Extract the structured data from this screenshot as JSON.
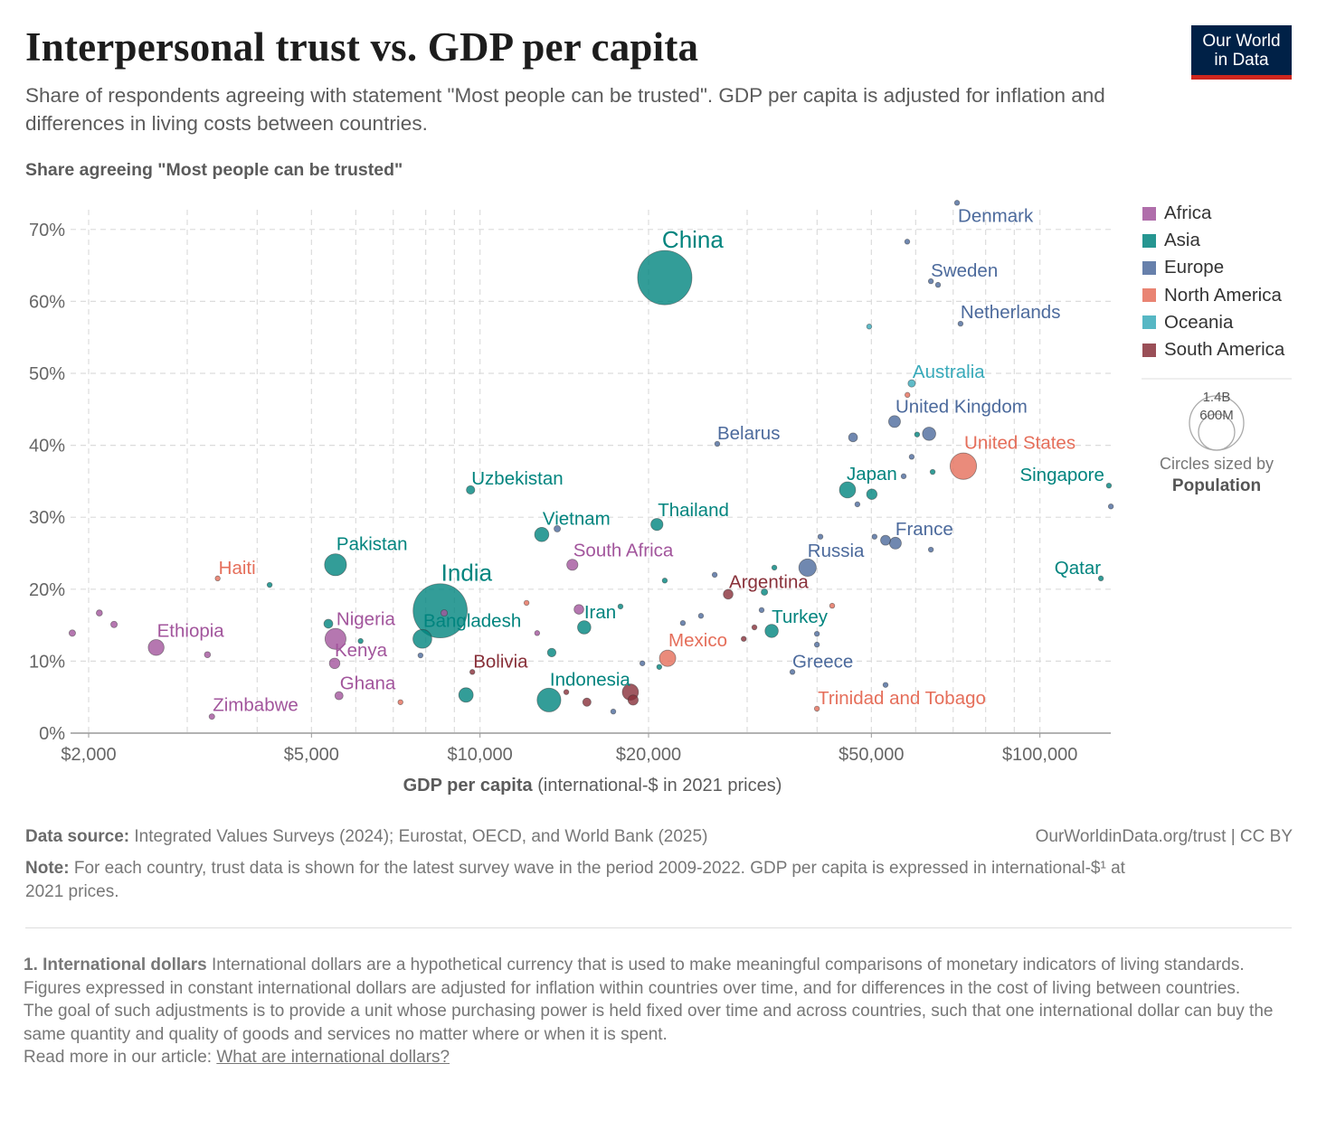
{
  "header": {
    "title": "Interpersonal trust vs. GDP per capita",
    "subtitle": "Share of respondents agreeing with statement \"Most people can be trusted\". GDP per capita is adjusted for inflation and differences in living costs between countries.",
    "logo_line1": "Our World",
    "logo_line2": "in Data"
  },
  "chart_data": {
    "type": "scatter",
    "title": "Interpersonal trust vs. GDP per capita",
    "ylabel": "Share agreeing \"Most people can be trusted\"",
    "xlabel_bold": "GDP per capita",
    "xlabel_rest": " (international-$ in 2021 prices)",
    "x_scale": "log",
    "xlim": [
      1860,
      134000
    ],
    "ylim": [
      0,
      73
    ],
    "x_ticks": [
      {
        "v": 2000,
        "label": "$2,000"
      },
      {
        "v": 5000,
        "label": "$5,000"
      },
      {
        "v": 10000,
        "label": "$10,000"
      },
      {
        "v": 20000,
        "label": "$20,000"
      },
      {
        "v": 50000,
        "label": "$50,000"
      },
      {
        "v": 100000,
        "label": "$100,000"
      }
    ],
    "y_ticks": [
      {
        "v": 0,
        "label": "0%"
      },
      {
        "v": 10,
        "label": "10%"
      },
      {
        "v": 20,
        "label": "20%"
      },
      {
        "v": 30,
        "label": "30%"
      },
      {
        "v": 40,
        "label": "40%"
      },
      {
        "v": 50,
        "label": "50%"
      },
      {
        "v": 60,
        "label": "60%"
      },
      {
        "v": 70,
        "label": "70%"
      }
    ],
    "grid": true,
    "legend_placement": "right",
    "regions": [
      {
        "name": "Africa",
        "color": "#a2559c"
      },
      {
        "name": "Asia",
        "color": "#00847e"
      },
      {
        "name": "Europe",
        "color": "#4c6a9c"
      },
      {
        "name": "North America",
        "color": "#e56e5a"
      },
      {
        "name": "Oceania",
        "color": "#38aaba"
      },
      {
        "name": "South America",
        "color": "#883039"
      }
    ],
    "size_legend": {
      "values": [
        "1.4B",
        "600M"
      ],
      "caption": "Circles sized by",
      "variable": "Population"
    },
    "points": [
      {
        "region": "Africa",
        "gdp": 1870,
        "trust": 13.9,
        "pop": 20
      },
      {
        "region": "Africa",
        "gdp": 2090,
        "trust": 16.7,
        "pop": 18
      },
      {
        "region": "Africa",
        "gdp": 2220,
        "trust": 15.1,
        "pop": 20
      },
      {
        "label": "Ethiopia",
        "region": "Africa",
        "gdp": 2640,
        "trust": 11.9,
        "pop": 120
      },
      {
        "region": "Africa",
        "gdp": 3260,
        "trust": 10.9,
        "pop": 18
      },
      {
        "label": "Zimbabwe",
        "region": "Africa",
        "gdp": 3320,
        "trust": 2.3,
        "pop": 15
      },
      {
        "label": "Nigeria",
        "region": "Africa",
        "gdp": 5520,
        "trust": 13.1,
        "pop": 210
      },
      {
        "label": "Kenya",
        "region": "Africa",
        "gdp": 5500,
        "trust": 9.7,
        "pop": 53
      },
      {
        "label": "Ghana",
        "region": "Africa",
        "gdp": 5600,
        "trust": 5.2,
        "pop": 32
      },
      {
        "region": "Africa",
        "gdp": 8630,
        "trust": 16.7,
        "pop": 20
      },
      {
        "region": "Africa",
        "gdp": 12650,
        "trust": 13.9,
        "pop": 10
      },
      {
        "label": "South Africa",
        "region": "Africa",
        "gdp": 14620,
        "trust": 23.4,
        "pop": 59
      },
      {
        "region": "Africa",
        "gdp": 15020,
        "trust": 17.2,
        "pop": 45
      },
      {
        "label": "China",
        "region": "Asia",
        "gdp": 21380,
        "trust": 63.3,
        "pop": 1410
      },
      {
        "label": "India",
        "region": "Asia",
        "gdp": 8490,
        "trust": 17.0,
        "pop": 1400
      },
      {
        "label": "Pakistan",
        "region": "Asia",
        "gdp": 5520,
        "trust": 23.4,
        "pop": 230
      },
      {
        "region": "Asia",
        "gdp": 4210,
        "trust": 20.6,
        "pop": 10
      },
      {
        "region": "Asia",
        "gdp": 5360,
        "trust": 15.2,
        "pop": 38
      },
      {
        "region": "Asia",
        "gdp": 6120,
        "trust": 12.8,
        "pop": 10
      },
      {
        "label": "Bangladesh",
        "region": "Asia",
        "gdp": 7890,
        "trust": 13.1,
        "pop": 170
      },
      {
        "label": "Uzbekistan",
        "region": "Asia",
        "gdp": 9620,
        "trust": 33.8,
        "pop": 34
      },
      {
        "region": "Asia",
        "gdp": 9440,
        "trust": 5.3,
        "pop": 100
      },
      {
        "label": "Vietnam",
        "region": "Asia",
        "gdp": 12890,
        "trust": 27.6,
        "pop": 97
      },
      {
        "region": "Asia",
        "gdp": 13430,
        "trust": 11.2,
        "pop": 35
      },
      {
        "label": "Indonesia",
        "region": "Asia",
        "gdp": 13280,
        "trust": 4.6,
        "pop": 270
      },
      {
        "label": "Iran",
        "region": "Asia",
        "gdp": 15350,
        "trust": 14.7,
        "pop": 85
      },
      {
        "region": "Asia",
        "gdp": 17820,
        "trust": 17.6,
        "pop": 10
      },
      {
        "label": "Thailand",
        "region": "Asia",
        "gdp": 20700,
        "trust": 29.0,
        "pop": 70
      },
      {
        "region": "Asia",
        "gdp": 21380,
        "trust": 21.2,
        "pop": 10
      },
      {
        "region": "Asia",
        "gdp": 20900,
        "trust": 9.2,
        "pop": 10
      },
      {
        "region": "Asia",
        "gdp": 33550,
        "trust": 23.0,
        "pop": 12
      },
      {
        "region": "Asia",
        "gdp": 32210,
        "trust": 19.6,
        "pop": 20
      },
      {
        "label": "Turkey",
        "region": "Asia",
        "gdp": 33180,
        "trust": 14.2,
        "pop": 84
      },
      {
        "label": "Japan",
        "region": "Asia",
        "gdp": 45330,
        "trust": 33.8,
        "pop": 125
      },
      {
        "region": "Asia",
        "gdp": 50100,
        "trust": 33.2,
        "pop": 52
      },
      {
        "region": "Asia",
        "gdp": 60350,
        "trust": 41.5,
        "pop": 8
      },
      {
        "region": "Asia",
        "gdp": 64330,
        "trust": 36.3,
        "pop": 8
      },
      {
        "label": "Singapore",
        "region": "Asia",
        "gdp": 132800,
        "trust": 34.4,
        "pop": 6
      },
      {
        "label": "Qatar",
        "region": "Asia",
        "gdp": 128500,
        "trust": 21.5,
        "pop": 3
      },
      {
        "region": "Europe",
        "gdp": 7830,
        "trust": 10.8,
        "pop": 8
      },
      {
        "region": "Europe",
        "gdp": 13740,
        "trust": 28.4,
        "pop": 20
      },
      {
        "label": "Belarus",
        "region": "Europe",
        "gdp": 26530,
        "trust": 40.2,
        "pop": 9
      },
      {
        "region": "Europe",
        "gdp": 26250,
        "trust": 22.0,
        "pop": 10
      },
      {
        "region": "Europe",
        "gdp": 24810,
        "trust": 16.3,
        "pop": 10
      },
      {
        "region": "Europe",
        "gdp": 23030,
        "trust": 15.3,
        "pop": 8
      },
      {
        "region": "Europe",
        "gdp": 19500,
        "trust": 9.7,
        "pop": 7
      },
      {
        "region": "Europe",
        "gdp": 17300,
        "trust": 3.0,
        "pop": 7
      },
      {
        "region": "Europe",
        "gdp": 31840,
        "trust": 17.1,
        "pop": 10
      },
      {
        "label": "Russia",
        "region": "Europe",
        "gdp": 38460,
        "trust": 23.0,
        "pop": 145
      },
      {
        "region": "Europe",
        "gdp": 40550,
        "trust": 27.3,
        "pop": 10
      },
      {
        "region": "Europe",
        "gdp": 39970,
        "trust": 13.8,
        "pop": 10
      },
      {
        "region": "Europe",
        "gdp": 39970,
        "trust": 12.3,
        "pop": 10
      },
      {
        "label": "Greece",
        "region": "Europe",
        "gdp": 36140,
        "trust": 8.5,
        "pop": 10
      },
      {
        "region": "Europe",
        "gdp": 53000,
        "trust": 6.7,
        "pop": 6
      },
      {
        "label": "France",
        "region": "Europe",
        "gdp": 55200,
        "trust": 26.4,
        "pop": 67
      },
      {
        "region": "Europe",
        "gdp": 53000,
        "trust": 26.8,
        "pop": 47
      },
      {
        "region": "Europe",
        "gdp": 50650,
        "trust": 27.3,
        "pop": 6
      },
      {
        "region": "Europe",
        "gdp": 63870,
        "trust": 25.5,
        "pop": 9
      },
      {
        "label": "United Kingdom",
        "region": "Europe",
        "gdp": 55000,
        "trust": 43.3,
        "pop": 67
      },
      {
        "region": "Europe",
        "gdp": 63400,
        "trust": 41.6,
        "pop": 84
      },
      {
        "region": "Europe",
        "gdp": 46370,
        "trust": 41.1,
        "pop": 38
      },
      {
        "region": "Europe",
        "gdp": 57100,
        "trust": 35.7,
        "pop": 8
      },
      {
        "region": "Europe",
        "gdp": 59020,
        "trust": 38.4,
        "pop": 6
      },
      {
        "region": "Europe",
        "gdp": 47210,
        "trust": 31.8,
        "pop": 6
      },
      {
        "label": "Denmark",
        "region": "Europe",
        "gdp": 71120,
        "trust": 73.7,
        "pop": 6
      },
      {
        "region": "Europe",
        "gdp": 57950,
        "trust": 68.3,
        "pop": 6
      },
      {
        "label": "Sweden",
        "region": "Europe",
        "gdp": 63870,
        "trust": 62.8,
        "pop": 10
      },
      {
        "region": "Europe",
        "gdp": 65770,
        "trust": 62.3,
        "pop": 6
      },
      {
        "label": "Netherlands",
        "region": "Europe",
        "gdp": 72150,
        "trust": 56.9,
        "pop": 8
      },
      {
        "region": "Europe",
        "gdp": 133900,
        "trust": 31.5,
        "pop": 8
      },
      {
        "label": "Haiti",
        "region": "North America",
        "gdp": 3400,
        "trust": 21.5,
        "pop": 11
      },
      {
        "region": "North America",
        "gdp": 7210,
        "trust": 4.3,
        "pop": 8
      },
      {
        "region": "North America",
        "gdp": 12110,
        "trust": 18.1,
        "pop": 8
      },
      {
        "label": "Mexico",
        "region": "North America",
        "gdp": 21630,
        "trust": 10.4,
        "pop": 127
      },
      {
        "region": "North America",
        "gdp": 42560,
        "trust": 17.7,
        "pop": 5
      },
      {
        "region": "North America",
        "gdp": 58000,
        "trust": 47.0,
        "pop": 5
      },
      {
        "label": "United States",
        "region": "North America",
        "gdp": 72990,
        "trust": 37.1,
        "pop": 335
      },
      {
        "label": "Trinidad and Tobago",
        "region": "North America",
        "gdp": 39970,
        "trust": 3.4,
        "pop": 2
      },
      {
        "label": "Australia",
        "region": "Oceania",
        "gdp": 59020,
        "trust": 48.6,
        "pop": 26
      },
      {
        "region": "Oceania",
        "gdp": 49560,
        "trust": 56.5,
        "pop": 5
      },
      {
        "label": "Bolivia",
        "region": "South America",
        "gdp": 9690,
        "trust": 8.5,
        "pop": 12
      },
      {
        "region": "South America",
        "gdp": 14260,
        "trust": 5.7,
        "pop": 8
      },
      {
        "region": "South America",
        "gdp": 15520,
        "trust": 4.3,
        "pop": 33
      },
      {
        "region": "South America",
        "gdp": 18560,
        "trust": 5.7,
        "pop": 125
      },
      {
        "region": "South America",
        "gdp": 18770,
        "trust": 4.6,
        "pop": 50
      },
      {
        "label": "Argentina",
        "region": "South America",
        "gdp": 27750,
        "trust": 19.3,
        "pop": 45
      },
      {
        "region": "South America",
        "gdp": 29580,
        "trust": 13.1,
        "pop": 8
      },
      {
        "region": "South America",
        "gdp": 30910,
        "trust": 14.7,
        "pop": 8
      }
    ]
  },
  "footer": {
    "source_label": "Data source:",
    "source_text": " Integrated Values Surveys (2024); Eurostat, OECD, and World Bank (2025)",
    "credit": "OurWorldinData.org/trust | CC BY",
    "note_label": "Note:",
    "note_text": " For each country, trust data is shown for the latest survey wave in the period 2009-2022. GDP per capita is expressed in international-$¹ at 2021 prices.",
    "fn_label": "1. International dollars",
    "fn_p1": " International dollars are a hypothetical currency that is used to make meaningful comparisons of monetary indicators of living standards.",
    "fn_p2": "Figures expressed in constant international dollars are adjusted for inflation within countries over time, and for differences in the cost of living between countries.",
    "fn_p3": "The goal of such adjustments is to provide a unit whose purchasing power is held fixed over time and across countries, such that one international dollar can buy the same quantity and quality of goods and services no matter where or when it is spent.",
    "fn_read_more": "Read more in our article: ",
    "fn_link": "What are international dollars?"
  }
}
